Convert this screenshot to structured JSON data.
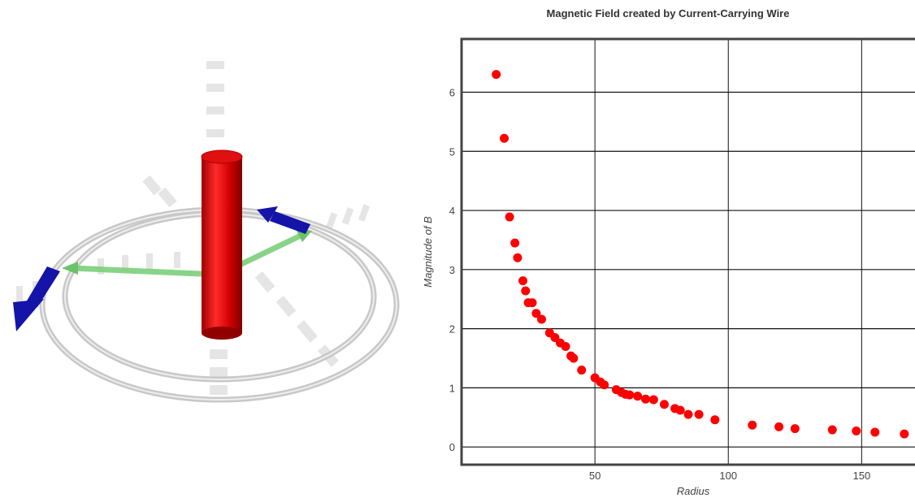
{
  "colors": {
    "wire": "#e00000",
    "field_arrow": "#1010b0",
    "radius_arrow": "#7ccf7c",
    "ring": "#d8d8d8",
    "point": "#ff0000",
    "frame": "#444444",
    "grid": "#111111"
  },
  "scene": {
    "objects": [
      "current-carrying-wire",
      "field-loop",
      "field-vector-arrow",
      "radius-arrow",
      "axis-markers"
    ]
  },
  "chart_data": {
    "type": "scatter",
    "title": "Magnetic Field created by Current-Carrying Wire",
    "xlabel": "Radius",
    "ylabel": "Magnitude of B",
    "xlim": [
      0,
      170
    ],
    "ylim": [
      -0.3,
      6.9
    ],
    "x_ticks": [
      50,
      100,
      150
    ],
    "y_ticks": [
      0,
      1,
      2,
      3,
      4,
      5,
      6
    ],
    "grid": true,
    "points": [
      {
        "x": 13,
        "y": 6.3
      },
      {
        "x": 16,
        "y": 5.22
      },
      {
        "x": 18,
        "y": 3.89
      },
      {
        "x": 20,
        "y": 3.45
      },
      {
        "x": 21,
        "y": 3.2
      },
      {
        "x": 23,
        "y": 2.81
      },
      {
        "x": 24,
        "y": 2.64
      },
      {
        "x": 25,
        "y": 2.44
      },
      {
        "x": 26.5,
        "y": 2.44
      },
      {
        "x": 28,
        "y": 2.26
      },
      {
        "x": 30,
        "y": 2.16
      },
      {
        "x": 33,
        "y": 1.93
      },
      {
        "x": 35,
        "y": 1.85
      },
      {
        "x": 37,
        "y": 1.76
      },
      {
        "x": 39,
        "y": 1.7
      },
      {
        "x": 41,
        "y": 1.54
      },
      {
        "x": 42,
        "y": 1.5
      },
      {
        "x": 45,
        "y": 1.3
      },
      {
        "x": 50,
        "y": 1.17
      },
      {
        "x": 52,
        "y": 1.1
      },
      {
        "x": 53.5,
        "y": 1.05
      },
      {
        "x": 58,
        "y": 0.97
      },
      {
        "x": 60,
        "y": 0.92
      },
      {
        "x": 61.5,
        "y": 0.89
      },
      {
        "x": 63,
        "y": 0.88
      },
      {
        "x": 66,
        "y": 0.86
      },
      {
        "x": 69,
        "y": 0.81
      },
      {
        "x": 72,
        "y": 0.8
      },
      {
        "x": 76,
        "y": 0.72
      },
      {
        "x": 80,
        "y": 0.65
      },
      {
        "x": 82,
        "y": 0.62
      },
      {
        "x": 85,
        "y": 0.55
      },
      {
        "x": 89,
        "y": 0.55
      },
      {
        "x": 95,
        "y": 0.46
      },
      {
        "x": 109,
        "y": 0.37
      },
      {
        "x": 119,
        "y": 0.34
      },
      {
        "x": 125,
        "y": 0.31
      },
      {
        "x": 139,
        "y": 0.29
      },
      {
        "x": 148,
        "y": 0.27
      },
      {
        "x": 155,
        "y": 0.25
      },
      {
        "x": 166,
        "y": 0.22
      }
    ]
  }
}
